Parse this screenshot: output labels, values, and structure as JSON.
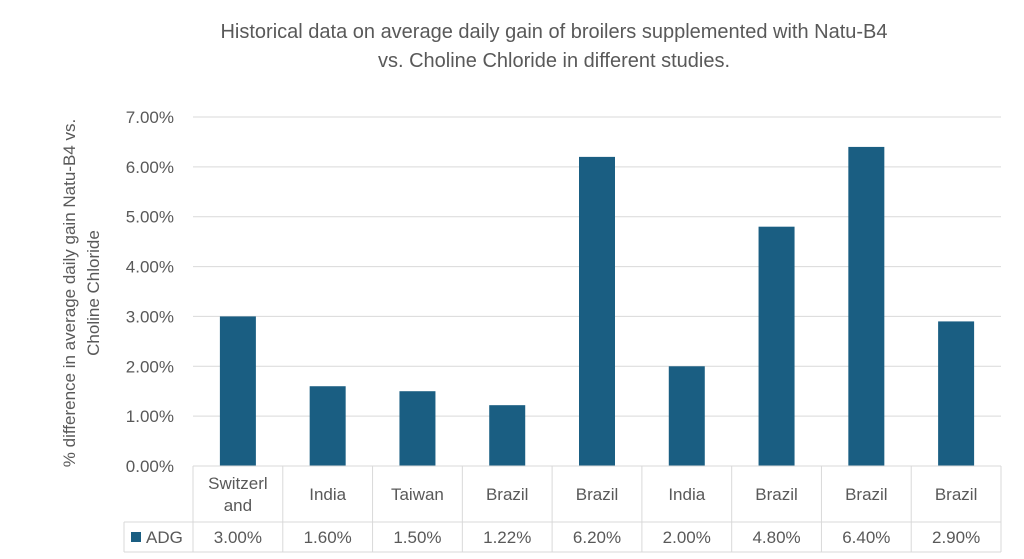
{
  "chart_data": {
    "type": "bar",
    "title": "Historical data on average daily gain of broilers supplemented with Natu-B4 vs. Choline Chloride in different studies.",
    "title_lines": [
      "Historical data on average daily gain of broilers supplemented with Natu-B4",
      "vs. Choline Chloride in different studies."
    ],
    "ylabel": "% difference in average daily gain Natu-B4 vs. Choline Chloride",
    "ylabel_lines": [
      "% difference in average daily gain Natu-B4 vs.",
      "Choline Chloride"
    ],
    "xlabel": "",
    "ylim": [
      0,
      0.07
    ],
    "yticks": [
      0,
      0.01,
      0.02,
      0.03,
      0.04,
      0.05,
      0.06,
      0.07
    ],
    "ytick_labels": [
      "0.00%",
      "1.00%",
      "2.00%",
      "3.00%",
      "4.00%",
      "5.00%",
      "6.00%",
      "7.00%"
    ],
    "grid": true,
    "categories": [
      "Switzerland",
      "India",
      "Taiwan",
      "Brazil",
      "Brazil",
      "India",
      "Brazil",
      "Brazil",
      "Brazil"
    ],
    "category_display": [
      [
        "Switzerl",
        "and"
      ],
      [
        "India"
      ],
      [
        "Taiwan"
      ],
      [
        "Brazil"
      ],
      [
        "Brazil"
      ],
      [
        "India"
      ],
      [
        "Brazil"
      ],
      [
        "Brazil"
      ],
      [
        "Brazil"
      ]
    ],
    "series": [
      {
        "name": "ADG",
        "color": "#1a5e82",
        "values": [
          0.03,
          0.016,
          0.015,
          0.0122,
          0.062,
          0.02,
          0.048,
          0.064,
          0.029
        ],
        "labels": [
          "3.00%",
          "1.60%",
          "1.50%",
          "1.22%",
          "6.20%",
          "2.00%",
          "4.80%",
          "6.40%",
          "2.90%"
        ]
      }
    ],
    "legend": "data-table",
    "colors": {
      "bar": "#1a5e82",
      "grid": "#d9d9d9",
      "text": "#595959",
      "table_border": "#d9d9d9"
    }
  }
}
